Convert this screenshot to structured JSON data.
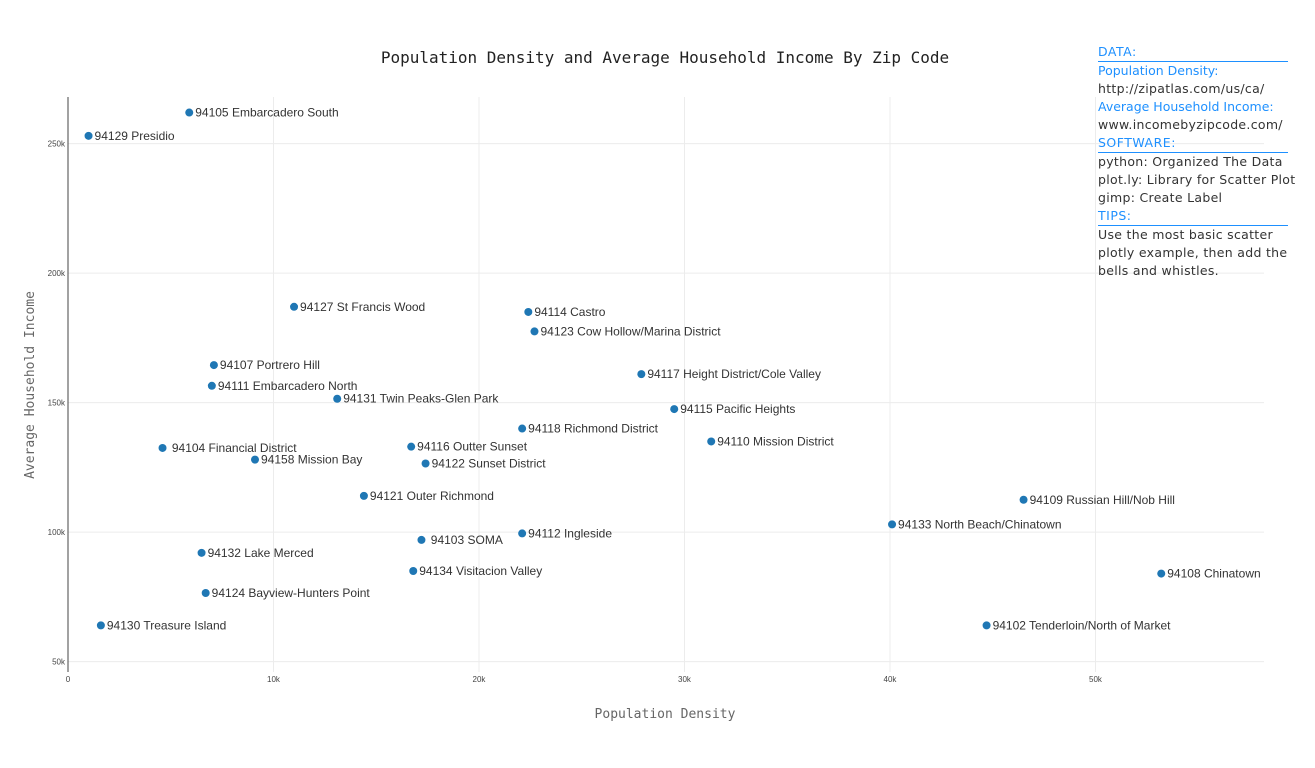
{
  "chart_data": {
    "type": "scatter",
    "title": "Population Density and Average Household Income By Zip Code",
    "xlabel": "Population Density",
    "ylabel": "Average Household Income",
    "xlim": [
      0,
      58200
    ],
    "ylim": [
      46000,
      268000
    ],
    "x_ticks": [
      0,
      10000,
      20000,
      30000,
      40000,
      50000
    ],
    "x_tick_labels": [
      "0",
      "10k",
      "20k",
      "30k",
      "40k",
      "50k"
    ],
    "y_ticks": [
      50000,
      100000,
      150000,
      200000,
      250000
    ],
    "y_tick_labels": [
      "50k",
      "100k",
      "150k",
      "200k",
      "250k"
    ],
    "grid": true,
    "marker_color": "#1f77b4",
    "points": [
      {
        "x": 5900,
        "y": 262000,
        "label": "94105 Embarcadero South"
      },
      {
        "x": 1000,
        "y": 253000,
        "label": "94129 Presidio"
      },
      {
        "x": 11000,
        "y": 187000,
        "label": "94127 St Francis Wood"
      },
      {
        "x": 22400,
        "y": 185000,
        "label": "94114 Castro"
      },
      {
        "x": 22700,
        "y": 177500,
        "label": "94123 Cow Hollow/Marina District"
      },
      {
        "x": 7100,
        "y": 164500,
        "label": "94107 Portrero Hill"
      },
      {
        "x": 27900,
        "y": 161000,
        "label": "94117 Height District/Cole Valley"
      },
      {
        "x": 7000,
        "y": 156500,
        "label": "94111 Embarcadero North"
      },
      {
        "x": 13100,
        "y": 151500,
        "label": "94131 Twin Peaks-Glen Park"
      },
      {
        "x": 29500,
        "y": 147500,
        "label": "94115 Pacific Heights"
      },
      {
        "x": 22100,
        "y": 140000,
        "label": "94118 Richmond District"
      },
      {
        "x": 31300,
        "y": 135000,
        "label": "94110 Mission District"
      },
      {
        "x": 4600,
        "y": 132500,
        "label": " 94104 Financial District"
      },
      {
        "x": 16700,
        "y": 133000,
        "label": "94116 Outter Sunset"
      },
      {
        "x": 9100,
        "y": 128000,
        "label": "94158 Mission Bay"
      },
      {
        "x": 17400,
        "y": 126500,
        "label": "94122 Sunset District"
      },
      {
        "x": 14400,
        "y": 114000,
        "label": "94121 Outer Richmond"
      },
      {
        "x": 46500,
        "y": 112500,
        "label": "94109 Russian Hill/Nob Hill"
      },
      {
        "x": 40100,
        "y": 103000,
        "label": "94133 North Beach/Chinatown"
      },
      {
        "x": 22100,
        "y": 99500,
        "label": "94112 Ingleside"
      },
      {
        "x": 17200,
        "y": 97000,
        "label": " 94103 SOMA"
      },
      {
        "x": 6500,
        "y": 92000,
        "label": "94132 Lake Merced"
      },
      {
        "x": 16800,
        "y": 85000,
        "label": "94134 Visitacion Valley"
      },
      {
        "x": 53200,
        "y": 84000,
        "label": "94108 Chinatown"
      },
      {
        "x": 6700,
        "y": 76500,
        "label": "94124 Bayview-Hunters Point"
      },
      {
        "x": 1600,
        "y": 64000,
        "label": "94130 Treasure Island"
      },
      {
        "x": 44700,
        "y": 64000,
        "label": "94102 Tenderloin/North of Market"
      }
    ]
  },
  "sidebar": {
    "data_header": "DATA:",
    "pop_density_label": "Population Density:",
    "pop_density_source": "http://zipatlas.com/us/ca/",
    "income_label": "Average Household Income:",
    "income_source": "www.incomebyzipcode.com/",
    "software_header": "SOFTWARE:",
    "software_lines": [
      "python: Organized The Data",
      "plot.ly: Library for Scatter Plot",
      "gimp: Create Label"
    ],
    "tips_header": "TIPS:",
    "tips_lines": [
      "Use the most basic scatter",
      "plotly example, then add the",
      "bells and whistles."
    ]
  }
}
